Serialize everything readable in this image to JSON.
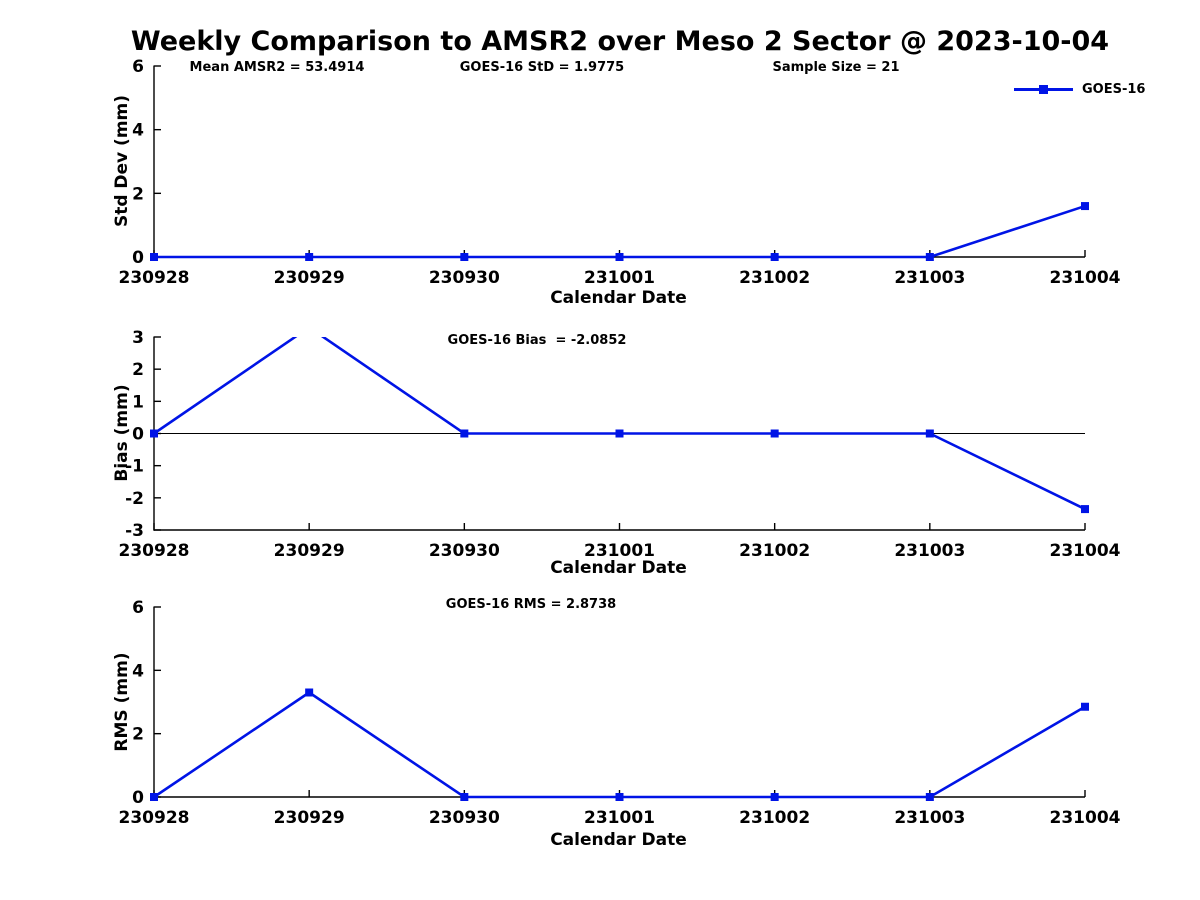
{
  "title": "Weekly Comparison to AMSR2 over Meso 2 Sector @ 2023-10-04",
  "colors": {
    "series": "#0014e6",
    "axis": "#000000",
    "text": "#000000",
    "background": "#ffffff"
  },
  "legend": {
    "label": "GOES-16",
    "marker": "square",
    "position": "top-right-above-axes"
  },
  "chart_data": [
    {
      "type": "line",
      "name": "std-dev",
      "ylabel": "Std Dev (mm)",
      "xlabel": "Calendar Date",
      "categories": [
        "230928",
        "230929",
        "230930",
        "231001",
        "231002",
        "231003",
        "231004"
      ],
      "series": [
        {
          "name": "GOES-16",
          "values": [
            0,
            0,
            0,
            0,
            0,
            0,
            1.6
          ]
        }
      ],
      "ylim": [
        0,
        6
      ],
      "yticks": [
        0,
        2,
        4,
        6
      ],
      "grid": false,
      "zero_line": false,
      "annotations": [
        "Mean AMSR2 = 53.4914",
        "GOES-16 StD = 1.9775",
        "Sample Size = 21"
      ]
    },
    {
      "type": "line",
      "name": "bias",
      "ylabel": "Bias (mm)",
      "xlabel": "Calendar Date",
      "categories": [
        "230928",
        "230929",
        "230930",
        "231001",
        "231002",
        "231003",
        "231004"
      ],
      "series": [
        {
          "name": "GOES-16",
          "values": [
            0,
            3.3,
            0,
            0,
            0,
            0,
            -2.35
          ]
        }
      ],
      "ylim": [
        -3,
        3
      ],
      "yticks": [
        -3,
        -2,
        -1,
        0,
        1,
        2,
        3
      ],
      "grid": false,
      "zero_line": true,
      "clip_note": "peak at 230929 exceeds +3 and is clipped by the axes",
      "annotations": [
        "GOES-16 Bias  = -2.0852"
      ]
    },
    {
      "type": "line",
      "name": "rms",
      "ylabel": "RMS (mm)",
      "xlabel": "Calendar Date",
      "categories": [
        "230928",
        "230929",
        "230930",
        "231001",
        "231002",
        "231003",
        "231004"
      ],
      "series": [
        {
          "name": "GOES-16",
          "values": [
            0,
            3.3,
            0,
            0,
            0,
            0,
            2.85
          ]
        }
      ],
      "ylim": [
        0,
        6
      ],
      "yticks": [
        0,
        2,
        4,
        6
      ],
      "grid": false,
      "zero_line": false,
      "annotations": [
        "GOES-16 RMS = 2.8738"
      ]
    }
  ]
}
